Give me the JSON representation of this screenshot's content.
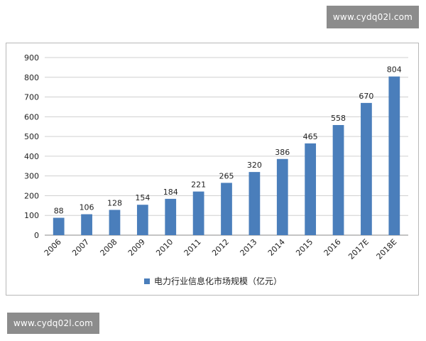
{
  "watermark": {
    "top": "www.cydq02l.com",
    "bottom": "www.cydq02l.com"
  },
  "chart_data": {
    "type": "bar",
    "categories": [
      "2006",
      "2007",
      "2008",
      "2009",
      "2010",
      "2011",
      "2012",
      "2013",
      "2014",
      "2015",
      "2016",
      "2017E",
      "2018E"
    ],
    "series": [
      {
        "name": "电力行业信息化市场规模（亿元）",
        "values": [
          88,
          106,
          128,
          154,
          184,
          221,
          265,
          320,
          386,
          465,
          558,
          670,
          804
        ],
        "color": "#4a7ebb"
      }
    ],
    "ylim": [
      0,
      900
    ],
    "yticks": [
      0,
      100,
      200,
      300,
      400,
      500,
      600,
      700,
      800,
      900
    ],
    "grid": true,
    "legend_position": "bottom"
  }
}
